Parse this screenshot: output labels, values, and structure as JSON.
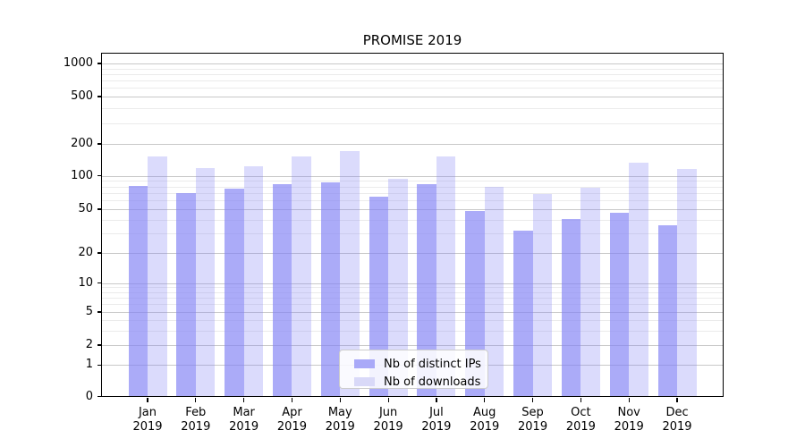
{
  "chart_data": {
    "type": "bar",
    "title": "PROMISE 2019",
    "x_year": "2019",
    "months": [
      "Jan",
      "Feb",
      "Mar",
      "Apr",
      "May",
      "Jun",
      "Jul",
      "Aug",
      "Sep",
      "Oct",
      "Nov",
      "Dec"
    ],
    "series": [
      {
        "name": "Nb of distinct IPs",
        "base_color": "#8282F5",
        "alpha": 0.67,
        "legend_swatch": "#A9A9F8",
        "values": [
          81,
          70,
          76,
          84,
          87,
          65,
          84,
          48,
          32,
          41,
          46,
          36
        ]
      },
      {
        "name": "Nb of downloads",
        "base_color": "#8282F5",
        "alpha": 0.29,
        "legend_swatch": "#D9D9F8",
        "values": [
          152,
          117,
          123,
          152,
          171,
          94,
          151,
          79,
          68,
          78,
          134,
          115
        ]
      }
    ],
    "yscale": "symlog",
    "ylim": [
      0,
      1250
    ],
    "y_ticks": [
      0,
      1,
      2,
      5,
      10,
      20,
      50,
      100,
      200,
      500,
      1000
    ],
    "y_minor_ticks": [
      3,
      4,
      6,
      7,
      8,
      9,
      30,
      40,
      60,
      70,
      80,
      90,
      300,
      400,
      600,
      700,
      800,
      900
    ],
    "grid": "on",
    "legend_position": "lower center",
    "colors": {
      "major_grid": "#C9C9C9",
      "minor_grid": "#EBEBEB",
      "axis": "#000000",
      "background": "#FFFFFF"
    }
  }
}
